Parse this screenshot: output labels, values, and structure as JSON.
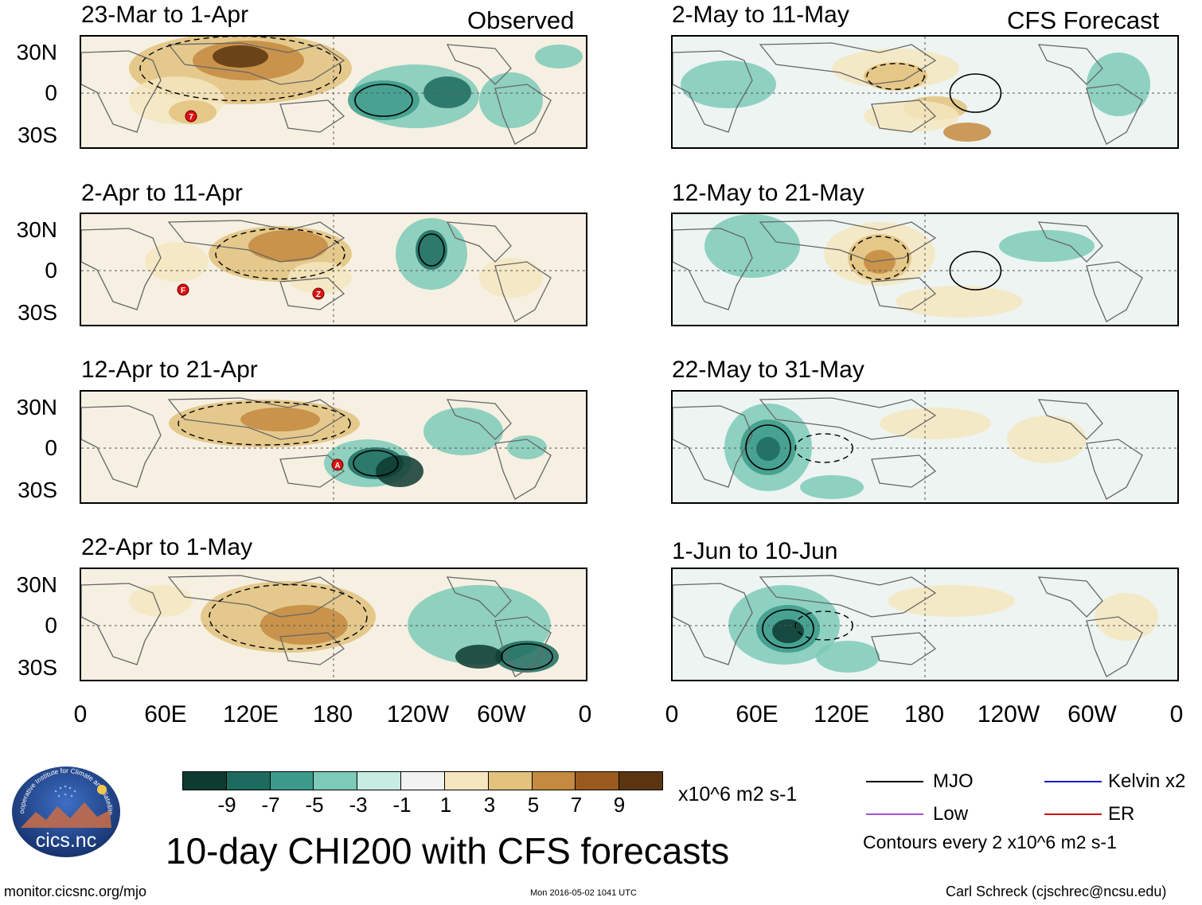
{
  "headers": {
    "observed": "Observed",
    "forecast": "CFS Forecast"
  },
  "panels": [
    {
      "title": "23-Mar to 1-Apr"
    },
    {
      "title": "2-Apr to 11-Apr"
    },
    {
      "title": "12-Apr to 21-Apr"
    },
    {
      "title": "22-Apr to 1-May"
    },
    {
      "title": "2-May to 11-May"
    },
    {
      "title": "12-May to 21-May"
    },
    {
      "title": "22-May to 31-May"
    },
    {
      "title": "1-Jun to 10-Jun"
    }
  ],
  "lat_labels": [
    "30N",
    "0",
    "30S"
  ],
  "lon_labels": [
    "0",
    "60E",
    "120E",
    "180",
    "120W",
    "60W",
    "0"
  ],
  "storm_markers": [
    {
      "panel": 0,
      "label": "7"
    },
    {
      "panel": 1,
      "label": "F"
    },
    {
      "panel": 1,
      "label": "Z"
    },
    {
      "panel": 2,
      "label": "A"
    }
  ],
  "colorbar": {
    "colors": [
      "#0e3a30",
      "#1c6b5e",
      "#3b9a8a",
      "#7ccab8",
      "#c7ece2",
      "#f2f2f2",
      "#f5e6bf",
      "#e2c27d",
      "#c48a3f",
      "#9a5a1e",
      "#5a3510"
    ],
    "labels": [
      "-9",
      "-7",
      "-5",
      "-3",
      "-1",
      "1",
      "3",
      "5",
      "7",
      "9"
    ],
    "units": "x10^6 m2 s-1"
  },
  "main_title": "10-day CHI200 with CFS forecasts",
  "legend": {
    "items": [
      {
        "label": "MJO",
        "color": "#000000"
      },
      {
        "label": "Kelvin x2",
        "color": "#1a1acc"
      },
      {
        "label": "Low",
        "color": "#a050d8"
      },
      {
        "label": "ER",
        "color": "#cc1111"
      }
    ],
    "contour_note": "Contours every 2 x10^6 m2 s-1"
  },
  "logo": {
    "arc_text": "Cooperative Institute for Climate and Satellites",
    "name": "cics.nc"
  },
  "footer": {
    "left": "monitor.cicsnc.org/mjo",
    "center": "Mon 2016-05-02 1041 UTC",
    "right": "Carl Schreck (cjschrec@ncsu.edu)"
  }
}
